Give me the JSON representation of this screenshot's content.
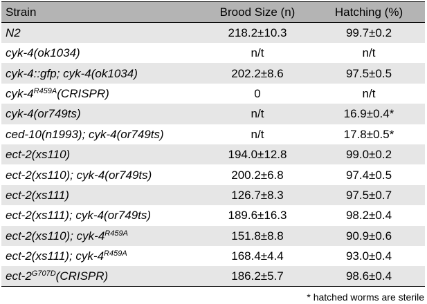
{
  "table": {
    "headers": [
      "Strain",
      "Brood Size (n)",
      "Hatching (%)"
    ],
    "rows": [
      {
        "strain": "N2",
        "strain_sup": "",
        "strain_suffix": "",
        "brood": "218.2±10.3",
        "hatch": "99.7±0.2"
      },
      {
        "strain": "cyk-4(ok1034)",
        "strain_sup": "",
        "strain_suffix": "",
        "brood": "n/t",
        "hatch": "n/t"
      },
      {
        "strain": "cyk-4::gfp; cyk-4(ok1034)",
        "strain_sup": "",
        "strain_suffix": "",
        "brood": "202.2±8.6",
        "hatch": "97.5±0.5"
      },
      {
        "strain": "cyk-4",
        "strain_sup": "R459A",
        "strain_suffix": "(CRISPR)",
        "brood": "0",
        "hatch": "n/t"
      },
      {
        "strain": "cyk-4(or749ts)",
        "strain_sup": "",
        "strain_suffix": "",
        "brood": "n/t",
        "hatch": "16.9±0.4*"
      },
      {
        "strain": "ced-10(n1993); cyk-4(or749ts)",
        "strain_sup": "",
        "strain_suffix": "",
        "brood": "n/t",
        "hatch": "17.8±0.5*"
      },
      {
        "strain": "ect-2(xs110)",
        "strain_sup": "",
        "strain_suffix": "",
        "brood": "194.0±12.8",
        "hatch": "99.0±0.2"
      },
      {
        "strain": "ect-2(xs110); cyk-4(or749ts)",
        "strain_sup": "",
        "strain_suffix": "",
        "brood": "200.2±6.8",
        "hatch": "97.4±0.5"
      },
      {
        "strain": "ect-2(xs111)",
        "strain_sup": "",
        "strain_suffix": "",
        "brood": "126.7±8.3",
        "hatch": "97.5±0.7"
      },
      {
        "strain": "ect-2(xs111); cyk-4(or749ts)",
        "strain_sup": "",
        "strain_suffix": "",
        "brood": "189.6±16.3",
        "hatch": "98.2±0.4"
      },
      {
        "strain": "ect-2(xs110); cyk-4",
        "strain_sup": "R459A",
        "strain_suffix": "",
        "brood": "151.8±8.8",
        "hatch": "90.9±0.6"
      },
      {
        "strain": "ect-2(xs111); cyk-4",
        "strain_sup": "R459A",
        "strain_suffix": "",
        "brood": "168.4±4.4",
        "hatch": "93.0±0.4"
      },
      {
        "strain": "ect-2",
        "strain_sup": "G707D",
        "strain_suffix": "(CRISPR)",
        "brood": "186.2±5.7",
        "hatch": "98.6±0.4"
      }
    ]
  },
  "footnote": "* hatched worms are sterile"
}
